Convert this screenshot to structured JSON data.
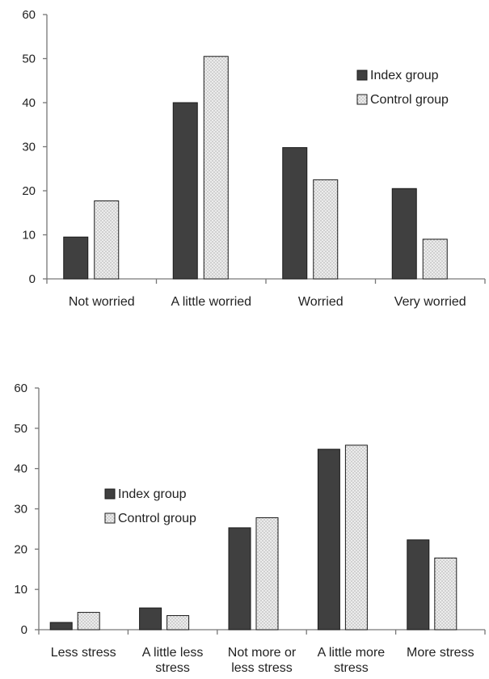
{
  "chart_data": [
    {
      "type": "bar",
      "categories": [
        [
          "Not worried"
        ],
        [
          "A little worried"
        ],
        [
          "Worried"
        ],
        [
          "Very worried"
        ]
      ],
      "series": [
        {
          "name": "Index group",
          "values": [
            9.5,
            40,
            29.8,
            20.5
          ],
          "color": "#404040",
          "pattern": "solid"
        },
        {
          "name": "Control group",
          "values": [
            17.7,
            50.5,
            22.5,
            9
          ],
          "color": "#e4e4e4",
          "pattern": "dotted"
        }
      ],
      "ylim": [
        0,
        60
      ],
      "yticks": [
        0,
        10,
        20,
        30,
        40,
        50,
        60
      ],
      "legend_position": "right"
    },
    {
      "type": "bar",
      "categories": [
        [
          "Less stress"
        ],
        [
          "A little less",
          "stress"
        ],
        [
          "Not more or",
          "less stress"
        ],
        [
          "A little more",
          "stress"
        ],
        [
          "More stress"
        ]
      ],
      "series": [
        {
          "name": "Index group",
          "values": [
            1.8,
            5.4,
            25.3,
            44.8,
            22.3
          ],
          "color": "#404040",
          "pattern": "solid"
        },
        {
          "name": "Control group",
          "values": [
            4.3,
            3.5,
            27.8,
            45.8,
            17.8
          ],
          "color": "#e4e4e4",
          "pattern": "dotted"
        }
      ],
      "ylim": [
        0,
        60
      ],
      "yticks": [
        0,
        10,
        20,
        30,
        40,
        50,
        60
      ],
      "legend_position": "left"
    }
  ]
}
